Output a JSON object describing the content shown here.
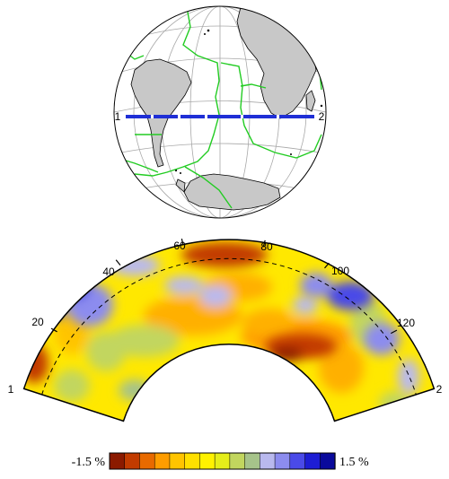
{
  "globe": {
    "profile_start_label": "1",
    "profile_end_label": "2",
    "colors": {
      "ocean": "#ffffff",
      "land": "#c8c8c8",
      "plate_boundaries": "#22cc22",
      "profile_line": "#1f2fd6",
      "graticule": "#a8a8a8"
    }
  },
  "cross_section": {
    "start_label": "1",
    "end_label": "2",
    "angle_ticks": [
      "20",
      "40",
      "60",
      "80",
      "100",
      "120"
    ],
    "reference_line": "dashed"
  },
  "colorbar": {
    "min_label": "-1.5 %",
    "max_label": "1.5 %",
    "colors": [
      "#8b1a00",
      "#c23b00",
      "#e86a00",
      "#ff9d00",
      "#ffc400",
      "#ffe000",
      "#fff200",
      "#e5ee1a",
      "#c2d65e",
      "#a6c38a",
      "#b9b9ee",
      "#8c8cef",
      "#4a4ae8",
      "#1d1dd4",
      "#0a0a9c"
    ]
  }
}
